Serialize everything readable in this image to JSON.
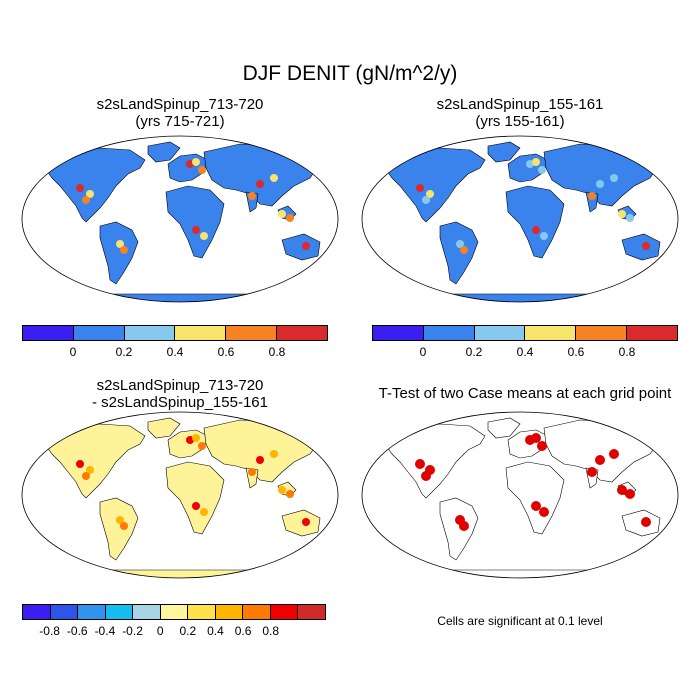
{
  "title": "DJF DENIT (gN/m^2/y)",
  "panels": [
    {
      "title_line1": "s2sLandSpinup_713-720",
      "title_line2": "(yrs 715-721)"
    },
    {
      "title_line1": "s2sLandSpinup_155-161",
      "title_line2": "(yrs 155-161)"
    },
    {
      "title_line1": "s2sLandSpinup_713-720",
      "title_line2": "- s2sLandSpinup_155-161"
    },
    {
      "title_line1": "T-Test of two Case means at each grid point",
      "title_line2": ""
    }
  ],
  "colorbar_abs": {
    "colors": [
      "#3b1ef2",
      "#3a82ec",
      "#87c9ee",
      "#f7e46c",
      "#f58223",
      "#d92b2b"
    ],
    "labels": [
      "0",
      "0.2",
      "0.4",
      "0.6",
      "0.8"
    ]
  },
  "colorbar_diff": {
    "colors": [
      "#3b1ef2",
      "#2f55e8",
      "#2f94f0",
      "#14bcf0",
      "#a6d5e8",
      "#fff59a",
      "#ffe24a",
      "#ffb400",
      "#ff7a00",
      "#f00000",
      "#d02a2a"
    ],
    "labels": [
      "-0.8",
      "-0.6",
      "-0.4",
      "-0.2",
      "0",
      "0.2",
      "0.4",
      "0.6",
      "0.8"
    ]
  },
  "colors": {
    "ocean": "#ffffff",
    "land_low": "#3a82ec",
    "diff_base": "#fff39a",
    "significant": "#e00000",
    "outline": "#000000"
  },
  "footnote": "Cells are significant at 0.1 level"
}
